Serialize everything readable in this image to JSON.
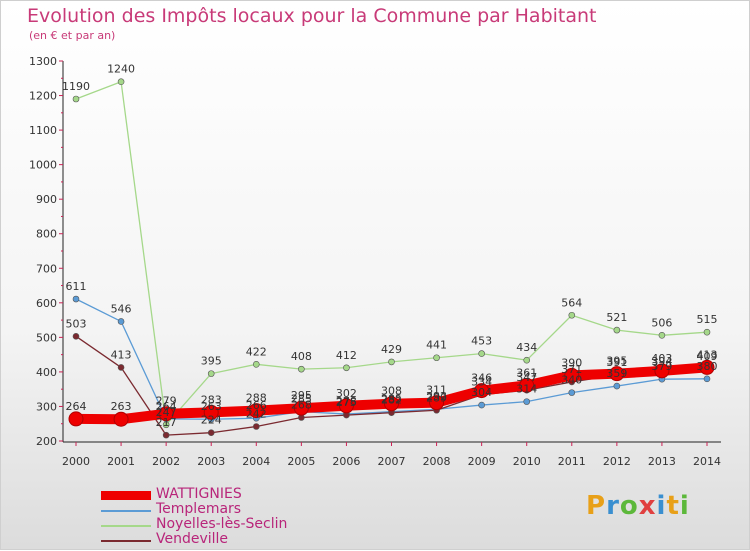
{
  "title": "Evolution des Impôts locaux pour la Commune par Habitant",
  "subtitle": "(en € et par an)",
  "logo": {
    "text": "Proxiti",
    "colors": [
      "#e8a018",
      "#3a8fd0",
      "#5cb83a",
      "#e04040",
      "#3a8fd0",
      "#e8a018",
      "#5cb83a"
    ]
  },
  "chart_data": {
    "type": "line",
    "x": [
      "2000",
      "2001",
      "2002",
      "2003",
      "2004",
      "2005",
      "2006",
      "2007",
      "2008",
      "2009",
      "2010",
      "2011",
      "2012",
      "2013",
      "2014"
    ],
    "yticks": [
      "200",
      "300",
      "400",
      "500",
      "600",
      "700",
      "800",
      "900",
      "1000",
      "1100",
      "1200",
      "1300"
    ],
    "ylim": [
      200,
      1300
    ],
    "grid": false,
    "legend_position": "bottom-left",
    "series": [
      {
        "name": "WATTIGNIES",
        "color": "#ee0000",
        "width": 10,
        "values": [
          264,
          263,
          279,
          283,
          288,
          295,
          302,
          308,
          311,
          346,
          361,
          390,
          395,
          403,
          413
        ],
        "labels": [
          "264",
          "263",
          "279",
          "283",
          "288",
          "295",
          "302",
          "308",
          "311",
          "346",
          "361",
          "390",
          "395",
          "403",
          "413"
        ]
      },
      {
        "name": "Templemars",
        "color": "#5b9bd5",
        "width": 1.3,
        "values": [
          611,
          546,
          264,
          263,
          266,
          285,
          278,
          285,
          292,
          304,
          314,
          340,
          359,
          379,
          380
        ],
        "labels": [
          "611",
          "546",
          "264",
          "263",
          "266",
          "285",
          "278",
          "285",
          "292",
          "304",
          "314",
          "340",
          "359",
          "379",
          "380"
        ]
      },
      {
        "name": "Noyelles-lès-Seclin",
        "color": "#a5d88a",
        "width": 1.3,
        "values": [
          1190,
          1240,
          247,
          395,
          422,
          408,
          412,
          429,
          441,
          453,
          434,
          564,
          521,
          506,
          515
        ],
        "labels": [
          "1190",
          "1240",
          "247",
          "395",
          "422",
          "408",
          "412",
          "429",
          "441",
          "453",
          "434",
          "564",
          "521",
          "506",
          "515"
        ]
      },
      {
        "name": "Vendeville",
        "color": "#7b2a30",
        "width": 1.3,
        "values": [
          503,
          413,
          217,
          224,
          242,
          268,
          275,
          282,
          289,
          334,
          347,
          371,
          391,
          394,
          409
        ],
        "labels": [
          "503",
          "413",
          "217",
          "224",
          "242",
          "268",
          "275",
          "282",
          "289",
          "334",
          "347",
          "371",
          "391",
          "394",
          "409"
        ]
      }
    ]
  }
}
